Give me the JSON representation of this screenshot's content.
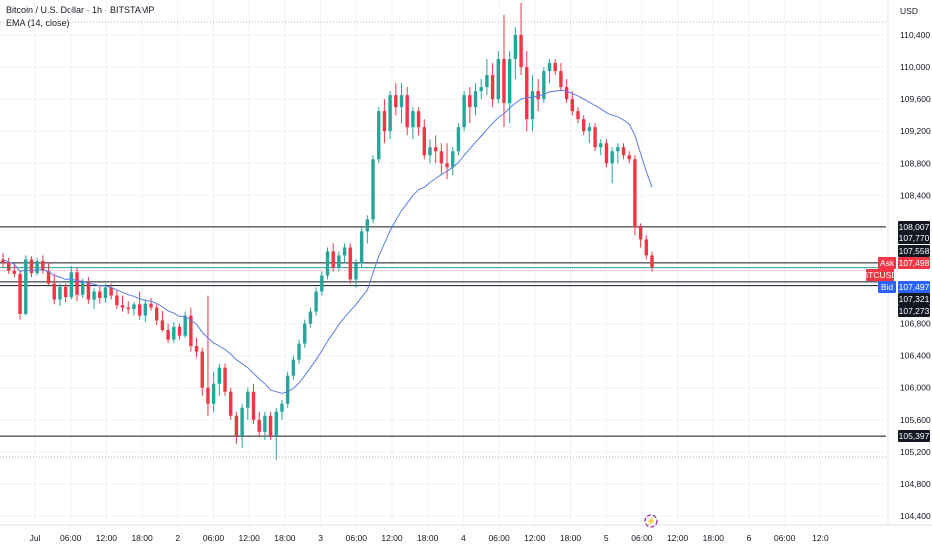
{
  "header": {
    "symbol_line": "Bitcoin / U.S. Dollar · 1h · BITSTAMP",
    "indicator_line": "EMA (14, close)",
    "currency": "USD"
  },
  "colors": {
    "up": "#26a69a",
    "down": "#f23645",
    "ema": "#5b7ce8",
    "level_line": "#131722",
    "green_line": "#26a69a",
    "ask_badge": "#f23645",
    "bid_badge": "#2962ff",
    "dark_badge": "#131722"
  },
  "chart_data": {
    "type": "candlestick",
    "y_axis": {
      "range": [
        104200,
        110800
      ],
      "ticks": [
        "110,400",
        "110,000",
        "109,600",
        "109,200",
        "108,800",
        "108,400",
        "106,800",
        "106,400",
        "106,000",
        "105,600",
        "105,200",
        "104,800",
        "104,400"
      ]
    },
    "x_axis": {
      "ticks": [
        "Jul",
        "06:00",
        "12:00",
        "18:00",
        "2",
        "06:00",
        "12:00",
        "18:00",
        "3",
        "06:00",
        "12:00",
        "18:00",
        "4",
        "06:00",
        "12:00",
        "18:00",
        "5",
        "06:00",
        "12:00",
        "18:00",
        "6",
        "06:00",
        "12:0"
      ]
    },
    "levels": [
      108007,
      107558,
      107321,
      107273,
      105397
    ],
    "green_level": 107498,
    "price_labels": [
      {
        "value": "108,007",
        "style": "dark"
      },
      {
        "value": "107,770",
        "style": "dark"
      },
      {
        "value": "107,558",
        "style": "dark"
      },
      {
        "value": "107,498",
        "style": "ask",
        "tag": "Ask"
      },
      {
        "value": "BTCUSD",
        "style": "ask",
        "tag": ""
      },
      {
        "value": "107,497",
        "style": "bid",
        "tag": "Bid"
      },
      {
        "value": "107,321",
        "style": "dark"
      },
      {
        "value": "107,273",
        "style": "dark"
      },
      {
        "value": "105,397",
        "style": "dark"
      }
    ],
    "candles": [
      [
        107600,
        107680,
        107500,
        107560
      ],
      [
        107560,
        107620,
        107420,
        107460
      ],
      [
        107460,
        107540,
        107380,
        107420
      ],
      [
        107420,
        107460,
        106850,
        106920
      ],
      [
        106920,
        107650,
        106900,
        107600
      ],
      [
        107600,
        107640,
        107380,
        107430
      ],
      [
        107430,
        107620,
        107400,
        107580
      ],
      [
        107580,
        107650,
        107420,
        107460
      ],
      [
        107460,
        107560,
        107280,
        107300
      ],
      [
        107300,
        107420,
        107040,
        107100
      ],
      [
        107100,
        107300,
        107020,
        107260
      ],
      [
        107260,
        107300,
        107070,
        107130
      ],
      [
        107130,
        107520,
        107100,
        107440
      ],
      [
        107440,
        107500,
        107080,
        107160
      ],
      [
        107160,
        107360,
        107120,
        107320
      ],
      [
        107320,
        107380,
        107050,
        107100
      ],
      [
        107100,
        107240,
        106980,
        107200
      ],
      [
        107200,
        107260,
        107050,
        107120
      ],
      [
        107120,
        107300,
        107060,
        107250
      ],
      [
        107250,
        107300,
        107100,
        107150
      ],
      [
        107150,
        107220,
        106980,
        107030
      ],
      [
        107030,
        107150,
        106950,
        107000
      ],
      [
        107000,
        107080,
        106920,
        106980
      ],
      [
        106980,
        107070,
        106900,
        107040
      ],
      [
        107040,
        107200,
        106850,
        106900
      ],
      [
        106900,
        107100,
        106820,
        107050
      ],
      [
        107050,
        107120,
        106960,
        107000
      ],
      [
        107000,
        107040,
        106780,
        106840
      ],
      [
        106840,
        106960,
        106700,
        106720
      ],
      [
        106720,
        106800,
        106560,
        106600
      ],
      [
        106600,
        106820,
        106560,
        106760
      ],
      [
        106760,
        106800,
        106600,
        106650
      ],
      [
        106650,
        106950,
        106620,
        106900
      ],
      [
        106900,
        107000,
        106450,
        106520
      ],
      [
        106520,
        106620,
        106380,
        106450
      ],
      [
        106450,
        106500,
        105900,
        106000
      ],
      [
        106000,
        107150,
        105650,
        105800
      ],
      [
        105800,
        106200,
        105700,
        106050
      ],
      [
        106050,
        106300,
        105900,
        106250
      ],
      [
        106250,
        106300,
        105900,
        105950
      ],
      [
        105950,
        106000,
        105600,
        105650
      ],
      [
        105650,
        105700,
        105300,
        105400
      ],
      [
        105400,
        105800,
        105250,
        105750
      ],
      [
        105750,
        106000,
        105600,
        105950
      ],
      [
        105950,
        106050,
        105550,
        105600
      ],
      [
        105600,
        105700,
        105380,
        105450
      ],
      [
        105450,
        105700,
        105350,
        105650
      ],
      [
        105650,
        105700,
        105350,
        105400
      ],
      [
        105400,
        105750,
        105100,
        105700
      ],
      [
        105700,
        105850,
        105600,
        105800
      ],
      [
        105800,
        106200,
        105750,
        106150
      ],
      [
        106150,
        106400,
        106100,
        106350
      ],
      [
        106350,
        106600,
        106300,
        106550
      ],
      [
        106550,
        106850,
        106500,
        106800
      ],
      [
        106800,
        107000,
        106750,
        106950
      ],
      [
        106950,
        107250,
        106900,
        107200
      ],
      [
        107200,
        107450,
        107150,
        107400
      ],
      [
        107400,
        107750,
        107350,
        107700
      ],
      [
        107700,
        107800,
        107450,
        107500
      ],
      [
        107500,
        107700,
        107450,
        107650
      ],
      [
        107650,
        107800,
        107550,
        107750
      ],
      [
        107750,
        107800,
        107300,
        107350
      ],
      [
        107350,
        107600,
        107250,
        107550
      ],
      [
        107550,
        108000,
        107500,
        107950
      ],
      [
        107950,
        108150,
        107800,
        108100
      ],
      [
        108100,
        108900,
        108050,
        108850
      ],
      [
        108850,
        109500,
        108800,
        109450
      ],
      [
        109450,
        109600,
        109050,
        109200
      ],
      [
        109200,
        109700,
        109100,
        109650
      ],
      [
        109650,
        109800,
        109400,
        109500
      ],
      [
        109500,
        109800,
        109300,
        109650
      ],
      [
        109650,
        109750,
        109150,
        109250
      ],
      [
        109250,
        109500,
        109100,
        109450
      ],
      [
        109450,
        109500,
        109150,
        109250
      ],
      [
        109250,
        109350,
        108850,
        108900
      ],
      [
        108900,
        109100,
        108800,
        109000
      ],
      [
        109000,
        109150,
        108800,
        108950
      ],
      [
        108950,
        109050,
        108650,
        108800
      ],
      [
        108800,
        109050,
        108600,
        108750
      ],
      [
        108750,
        109000,
        108650,
        108950
      ],
      [
        108950,
        109300,
        108900,
        109250
      ],
      [
        109250,
        109700,
        109200,
        109650
      ],
      [
        109650,
        109750,
        109300,
        109500
      ],
      [
        109500,
        109800,
        109400,
        109700
      ],
      [
        109700,
        109850,
        109600,
        109750
      ],
      [
        109750,
        110100,
        109650,
        109900
      ],
      [
        109900,
        110050,
        109500,
        109600
      ],
      [
        109600,
        110200,
        109550,
        110100
      ],
      [
        110100,
        110650,
        109250,
        109550
      ],
      [
        109550,
        110200,
        109300,
        110100
      ],
      [
        110100,
        110500,
        109850,
        110400
      ],
      [
        110400,
        110800,
        109900,
        110000
      ],
      [
        110000,
        110200,
        109200,
        109350
      ],
      [
        109350,
        109900,
        109200,
        109700
      ],
      [
        109700,
        109850,
        109450,
        109600
      ],
      [
        109600,
        110000,
        109550,
        109950
      ],
      [
        109950,
        110100,
        109800,
        110050
      ],
      [
        110050,
        110100,
        109900,
        109950
      ],
      [
        109950,
        110050,
        109700,
        109750
      ],
      [
        109750,
        109850,
        109550,
        109600
      ],
      [
        109600,
        109700,
        109400,
        109450
      ],
      [
        109450,
        109500,
        109300,
        109350
      ],
      [
        109350,
        109400,
        109150,
        109200
      ],
      [
        109200,
        109300,
        109050,
        109250
      ],
      [
        109250,
        109300,
        108950,
        109000
      ],
      [
        109000,
        109100,
        108900,
        109050
      ],
      [
        109050,
        109100,
        108750,
        108800
      ],
      [
        108800,
        109000,
        108550,
        108950
      ],
      [
        108950,
        109050,
        108800,
        109000
      ],
      [
        109000,
        109050,
        108850,
        108900
      ],
      [
        108900,
        108950,
        108800,
        108850
      ],
      [
        108850,
        108900,
        107900,
        108000
      ],
      [
        108000,
        108050,
        107750,
        107850
      ],
      [
        107850,
        107900,
        107600,
        107650
      ],
      [
        107650,
        107700,
        107450,
        107500
      ]
    ],
    "ema": [
      107600,
      107570,
      107540,
      107450,
      107470,
      107460,
      107470,
      107470,
      107450,
      107400,
      107380,
      107350,
      107360,
      107330,
      107330,
      107300,
      107290,
      107270,
      107270,
      107250,
      107220,
      107190,
      107160,
      107140,
      107110,
      107090,
      107080,
      107050,
      107010,
      106960,
      106930,
      106890,
      106890,
      106840,
      106790,
      106690,
      106620,
      106560,
      106520,
      106480,
      106420,
      106350,
      106300,
      106250,
      106180,
      106110,
      106050,
      105970,
      105950,
      105930,
      105950,
      105990,
      106060,
      106150,
      106250,
      106350,
      106460,
      106580,
      106680,
      106790,
      106880,
      106960,
      107040,
      107130,
      107220,
      107430,
      107640,
      107800,
      107960,
      108090,
      108210,
      108300,
      108400,
      108470,
      108500,
      108560,
      108610,
      108660,
      108700,
      108750,
      108810,
      108900,
      108980,
      109060,
      109140,
      109220,
      109300,
      109370,
      109420,
      109490,
      109550,
      109600,
      109620,
      109620,
      109640,
      109660,
      109690,
      109700,
      109710,
      109700,
      109670,
      109640,
      109600,
      109560,
      109520,
      109480,
      109430,
      109400,
      109380,
      109340,
      109290,
      109150,
      108920,
      108700,
      108500
    ]
  }
}
